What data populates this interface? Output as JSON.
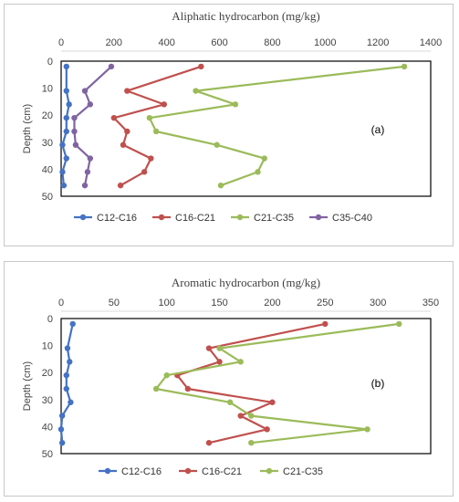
{
  "chart_data": [
    {
      "id": "a",
      "type": "line",
      "title": "Aliphatic hydrocarbon (mg/kg)",
      "ylabel": "Depth (cm)",
      "annotation": "(a)",
      "xlim": [
        0,
        1400
      ],
      "xticks": [
        0,
        200,
        400,
        600,
        800,
        1000,
        1200,
        1400
      ],
      "ylim": [
        0,
        50
      ],
      "yticks": [
        0,
        10,
        20,
        30,
        40,
        50
      ],
      "x_axis_position": "top",
      "y_inverted": true,
      "grid": false,
      "legend_position": "bottom",
      "series": [
        {
          "name": "C12-C16",
          "color": "#4472c4",
          "points": [
            [
              20,
              2
            ],
            [
              20,
              11
            ],
            [
              30,
              16
            ],
            [
              20,
              21
            ],
            [
              20,
              26
            ],
            [
              5,
              31
            ],
            [
              20,
              36
            ],
            [
              5,
              41
            ],
            [
              10,
              46
            ]
          ]
        },
        {
          "name": "C16-C21",
          "color": "#c0504d",
          "points": [
            [
              530,
              2
            ],
            [
              250,
              11
            ],
            [
              390,
              16
            ],
            [
              200,
              21
            ],
            [
              250,
              26
            ],
            [
              235,
              31
            ],
            [
              340,
              36
            ],
            [
              315,
              41
            ],
            [
              225,
              46
            ]
          ]
        },
        {
          "name": "C21-C35",
          "color": "#9bbb59",
          "points": [
            [
              1300,
              2
            ],
            [
              510,
              11
            ],
            [
              660,
              16
            ],
            [
              335,
              21
            ],
            [
              360,
              26
            ],
            [
              590,
              31
            ],
            [
              770,
              36
            ],
            [
              745,
              41
            ],
            [
              605,
              46
            ]
          ]
        },
        {
          "name": "C35-C40",
          "color": "#8064a2",
          "points": [
            [
              190,
              2
            ],
            [
              90,
              11
            ],
            [
              110,
              16
            ],
            [
              50,
              21
            ],
            [
              50,
              26
            ],
            [
              55,
              31
            ],
            [
              110,
              36
            ],
            [
              100,
              41
            ],
            [
              90,
              46
            ]
          ]
        }
      ]
    },
    {
      "id": "b",
      "type": "line",
      "title": "Aromatic hydrocarbon (mg/kg)",
      "ylabel": "Depth (cm)",
      "annotation": "(b)",
      "xlim": [
        0,
        350
      ],
      "xticks": [
        0,
        50,
        100,
        150,
        200,
        250,
        300,
        350
      ],
      "ylim": [
        0,
        50
      ],
      "yticks": [
        0,
        10,
        20,
        30,
        40,
        50
      ],
      "x_axis_position": "top",
      "y_inverted": true,
      "grid": false,
      "legend_position": "bottom",
      "series": [
        {
          "name": "C12-C16",
          "color": "#4472c4",
          "points": [
            [
              11,
              2
            ],
            [
              6,
              11
            ],
            [
              8,
              16
            ],
            [
              5,
              21
            ],
            [
              5,
              26
            ],
            [
              9,
              31
            ],
            [
              1,
              36
            ],
            [
              0,
              41
            ],
            [
              1,
              46
            ]
          ]
        },
        {
          "name": "C16-C21",
          "color": "#c0504d",
          "points": [
            [
              250,
              2
            ],
            [
              140,
              11
            ],
            [
              150,
              16
            ],
            [
              110,
              21
            ],
            [
              120,
              26
            ],
            [
              200,
              31
            ],
            [
              170,
              36
            ],
            [
              195,
              41
            ],
            [
              140,
              46
            ]
          ]
        },
        {
          "name": "C21-C35",
          "color": "#9bbb59",
          "points": [
            [
              320,
              2
            ],
            [
              150,
              11
            ],
            [
              170,
              16
            ],
            [
              100,
              21
            ],
            [
              90,
              26
            ],
            [
              160,
              31
            ],
            [
              180,
              36
            ],
            [
              290,
              41
            ],
            [
              180,
              46
            ]
          ]
        }
      ]
    }
  ]
}
